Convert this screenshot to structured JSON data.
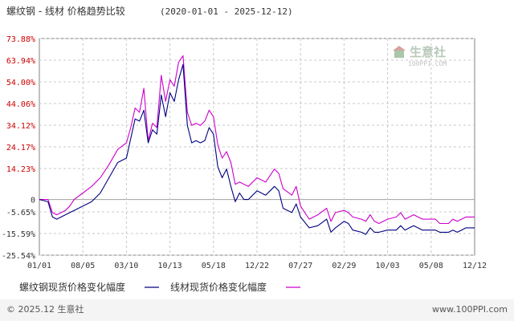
{
  "header": {
    "title": "螺纹钢 - 线材 价格趋势比较",
    "range": "(2020-01-01 - 2025-12-12)"
  },
  "watermark": {
    "name": "生意社",
    "url": "100PPI.COM"
  },
  "footer": {
    "copyright": "© 2025.12 生意社",
    "site": "www.100PPI.com"
  },
  "colors": {
    "rebar": "#000080",
    "wire": "#cc00cc",
    "grid": "#c8c8c8",
    "axis": "#808080"
  },
  "chart_data": {
    "type": "line",
    "title": "螺纹钢 - 线材 价格趋势比较",
    "xlabel": "",
    "ylabel": "",
    "x_tick_labels": [
      "01/01",
      "08/05",
      "03/10",
      "10/13",
      "05/18",
      "12/22",
      "07/27",
      "02/29",
      "10/03",
      "05/08",
      "12/12"
    ],
    "y_ticks": [
      {
        "label": "73.88%",
        "value": 73.88
      },
      {
        "label": "63.94%",
        "value": 63.94
      },
      {
        "label": "54.00%",
        "value": 54.0
      },
      {
        "label": "44.06%",
        "value": 44.06
      },
      {
        "label": "34.12%",
        "value": 34.12
      },
      {
        "label": "24.17%",
        "value": 24.17
      },
      {
        "label": "14.23%",
        "value": 14.23
      },
      {
        "label": "0",
        "value": 0
      },
      {
        "label": "-5.65%",
        "value": -5.65
      },
      {
        "label": "-15.59%",
        "value": -15.59
      },
      {
        "label": "-25.54%",
        "value": -25.54
      }
    ],
    "ylim": [
      -25.54,
      73.88
    ],
    "x_range": [
      0,
      100
    ],
    "grid": true,
    "legend_position": "bottom-left",
    "series": [
      {
        "name": "螺纹钢现货价格变化幅度",
        "color": "#000080",
        "x": [
          0,
          2,
          3,
          4,
          5,
          6,
          7,
          8,
          10,
          12,
          14,
          16,
          18,
          20,
          21,
          22,
          23,
          24,
          25,
          26,
          27,
          28,
          29,
          30,
          31,
          32,
          33,
          34,
          35,
          36,
          37,
          38,
          39,
          40,
          41,
          42,
          43,
          44,
          45,
          46,
          47,
          48,
          50,
          52,
          54,
          55,
          56,
          58,
          59,
          60,
          62,
          64,
          66,
          67,
          68,
          70,
          71,
          72,
          74,
          75,
          76,
          77,
          78,
          80,
          82,
          83,
          84,
          85,
          86,
          88,
          90,
          91,
          92,
          94,
          95,
          96,
          97,
          98,
          100
        ],
        "values": [
          0,
          -1,
          -8,
          -9,
          -8,
          -7,
          -6,
          -5,
          -3,
          -1,
          3,
          10,
          17,
          19,
          28,
          37,
          36,
          41,
          26,
          32,
          30,
          48,
          38,
          49,
          45,
          55,
          62,
          34,
          26,
          27,
          26,
          27,
          33,
          30,
          15,
          10,
          14,
          6,
          -1,
          3,
          0,
          0,
          4,
          2,
          6,
          4,
          -4,
          -6,
          -2,
          -8,
          -13,
          -12,
          -9,
          -15,
          -13,
          -10,
          -11,
          -14,
          -15,
          -16,
          -13,
          -15,
          -15,
          -14,
          -14,
          -12,
          -14,
          -13,
          -12,
          -14,
          -14,
          -14,
          -15,
          -15,
          -14,
          -15,
          -14,
          -13,
          -13
        ]
      },
      {
        "name": "线材现货价格变化幅度",
        "color": "#cc00cc",
        "x": [
          0,
          2,
          3,
          4,
          5,
          6,
          7,
          8,
          10,
          12,
          14,
          16,
          18,
          20,
          21,
          22,
          23,
          24,
          25,
          26,
          27,
          28,
          29,
          30,
          31,
          32,
          33,
          34,
          35,
          36,
          37,
          38,
          39,
          40,
          41,
          42,
          43,
          44,
          45,
          46,
          47,
          48,
          50,
          52,
          54,
          55,
          56,
          58,
          59,
          60,
          62,
          64,
          66,
          67,
          68,
          70,
          71,
          72,
          74,
          75,
          76,
          77,
          78,
          80,
          82,
          83,
          84,
          85,
          86,
          88,
          90,
          91,
          92,
          94,
          95,
          96,
          97,
          98,
          100
        ],
        "values": [
          0,
          0,
          -6,
          -7,
          -6,
          -5,
          -3,
          0,
          3,
          6,
          10,
          16,
          23,
          26,
          33,
          42,
          40,
          51,
          27,
          35,
          33,
          57,
          45,
          55,
          52,
          63,
          66,
          40,
          34,
          35,
          34,
          36,
          41,
          38,
          25,
          19,
          22,
          17,
          7,
          8,
          7,
          6,
          10,
          8,
          14,
          12,
          5,
          2,
          6,
          -3,
          -9,
          -7,
          -4,
          -10,
          -6,
          -5,
          -6,
          -8,
          -9,
          -10,
          -7,
          -10,
          -11,
          -9,
          -8,
          -6,
          -9,
          -8,
          -7,
          -9,
          -9,
          -9,
          -11,
          -11,
          -9,
          -10,
          -9,
          -8,
          -8
        ]
      }
    ]
  }
}
